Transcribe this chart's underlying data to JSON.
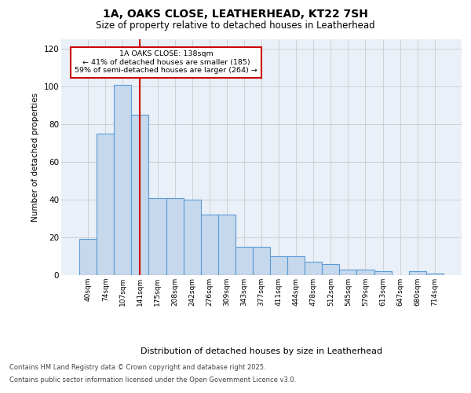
{
  "title_line1": "1A, OAKS CLOSE, LEATHERHEAD, KT22 7SH",
  "title_line2": "Size of property relative to detached houses in Leatherhead",
  "xlabel": "Distribution of detached houses by size in Leatherhead",
  "ylabel": "Number of detached properties",
  "categories": [
    "40sqm",
    "74sqm",
    "107sqm",
    "141sqm",
    "175sqm",
    "208sqm",
    "242sqm",
    "276sqm",
    "309sqm",
    "343sqm",
    "377sqm",
    "411sqm",
    "444sqm",
    "478sqm",
    "512sqm",
    "545sqm",
    "579sqm",
    "613sqm",
    "647sqm",
    "680sqm",
    "714sqm"
  ],
  "values": [
    19,
    75,
    101,
    85,
    41,
    41,
    40,
    32,
    32,
    15,
    15,
    10,
    10,
    7,
    6,
    3,
    3,
    2,
    0,
    2,
    1
  ],
  "bar_color": "#c5d8ec",
  "bar_edge_color": "#5b9bd5",
  "vline_x_idx": 3,
  "vline_color": "#cc0000",
  "annotation_text": "1A OAKS CLOSE: 138sqm\n← 41% of detached houses are smaller (185)\n59% of semi-detached houses are larger (264) →",
  "annotation_box_facecolor": "#ffffff",
  "annotation_box_edgecolor": "#cc0000",
  "ylim_max": 125,
  "yticks": [
    0,
    20,
    40,
    60,
    80,
    100,
    120
  ],
  "grid_color": "#cccccc",
  "plot_bg_color": "#eaf0f8",
  "footer_line1": "Contains HM Land Registry data © Crown copyright and database right 2025.",
  "footer_line2": "Contains public sector information licensed under the Open Government Licence v3.0."
}
